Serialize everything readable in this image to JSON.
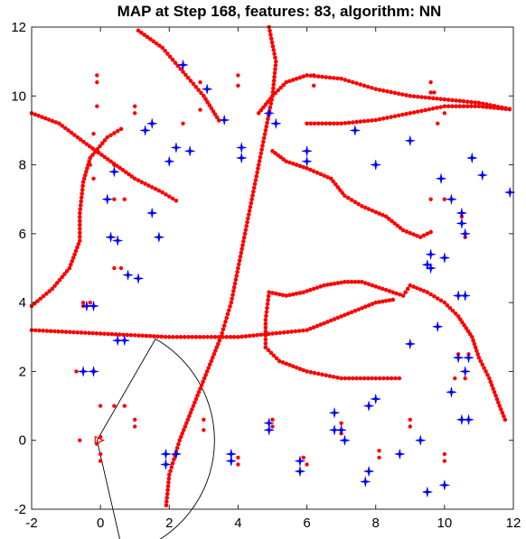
{
  "chart_data": {
    "type": "scatter",
    "title": "MAP at Step 168, features: 83, algorithm: NN",
    "xlabel": "",
    "ylabel": "",
    "xlim": [
      -2,
      12
    ],
    "ylim": [
      -2,
      12
    ],
    "xticks": [
      -2,
      0,
      2,
      4,
      6,
      8,
      10,
      12
    ],
    "yticks": [
      -2,
      0,
      2,
      4,
      6,
      8,
      10,
      12
    ],
    "grid": false,
    "colors": {
      "track": "#ff0000",
      "features": "#0000ff",
      "sensor": "#000000"
    },
    "tracks": [
      [
        [
          1.1,
          11.9
        ],
        [
          1.8,
          11.4
        ],
        [
          2.4,
          10.7
        ],
        [
          3.0,
          10.0
        ],
        [
          3.5,
          9.2
        ]
      ],
      [
        [
          -2.0,
          9.5
        ],
        [
          -1.2,
          9.2
        ],
        [
          -0.4,
          8.6
        ],
        [
          0.3,
          8.1
        ],
        [
          1.0,
          7.6
        ],
        [
          1.8,
          7.2
        ],
        [
          2.3,
          6.9
        ]
      ],
      [
        [
          4.9,
          12.0
        ],
        [
          5.1,
          11.0
        ],
        [
          5.0,
          10.0
        ],
        [
          4.8,
          9.0
        ],
        [
          4.6,
          8.0
        ],
        [
          4.4,
          7.0
        ],
        [
          4.2,
          6.0
        ],
        [
          4.0,
          5.0
        ],
        [
          3.8,
          4.0
        ],
        [
          3.5,
          3.0
        ],
        [
          3.1,
          2.0
        ],
        [
          2.7,
          1.0
        ],
        [
          2.3,
          0.0
        ],
        [
          2.0,
          -1.0
        ],
        [
          1.9,
          -2.0
        ]
      ],
      [
        [
          -2.0,
          3.9
        ],
        [
          -1.4,
          4.4
        ],
        [
          -0.9,
          5.0
        ],
        [
          -0.6,
          5.8
        ],
        [
          -0.6,
          6.6
        ],
        [
          -0.5,
          7.5
        ],
        [
          -0.3,
          8.2
        ],
        [
          0.2,
          8.8
        ],
        [
          0.7,
          9.1
        ]
      ],
      [
        [
          -2.0,
          3.2
        ],
        [
          0.0,
          3.1
        ],
        [
          2.0,
          3.0
        ],
        [
          4.0,
          3.0
        ],
        [
          5.0,
          3.1
        ],
        [
          6.0,
          3.2
        ],
        [
          7.0,
          3.6
        ],
        [
          8.0,
          4.0
        ],
        [
          8.6,
          4.1
        ]
      ],
      [
        [
          4.8,
          2.7
        ],
        [
          5.2,
          2.3
        ],
        [
          6.0,
          2.0
        ],
        [
          7.0,
          1.8
        ],
        [
          8.0,
          1.8
        ],
        [
          8.8,
          1.8
        ]
      ],
      [
        [
          4.8,
          2.7
        ],
        [
          4.8,
          3.5
        ],
        [
          4.9,
          4.3
        ],
        [
          5.4,
          4.2
        ],
        [
          5.9,
          4.3
        ],
        [
          6.5,
          4.5
        ],
        [
          7.1,
          4.6
        ],
        [
          7.6,
          4.6
        ],
        [
          8.2,
          4.4
        ],
        [
          8.8,
          4.2
        ],
        [
          9.0,
          4.5
        ],
        [
          9.5,
          4.3
        ],
        [
          10.0,
          4.0
        ],
        [
          10.4,
          3.6
        ],
        [
          10.8,
          3.0
        ],
        [
          11.0,
          2.4
        ],
        [
          11.3,
          1.8
        ],
        [
          11.6,
          1.0
        ],
        [
          11.8,
          0.5
        ]
      ],
      [
        [
          4.6,
          9.5
        ],
        [
          5.0,
          10.0
        ],
        [
          5.4,
          10.4
        ],
        [
          6.0,
          10.6
        ],
        [
          7.0,
          10.5
        ],
        [
          8.0,
          10.2
        ],
        [
          9.0,
          10.0
        ],
        [
          10.0,
          9.9
        ],
        [
          11.0,
          9.8
        ],
        [
          12.0,
          9.6
        ]
      ],
      [
        [
          6.0,
          9.2
        ],
        [
          7.0,
          9.2
        ],
        [
          8.0,
          9.3
        ],
        [
          9.0,
          9.5
        ],
        [
          10.0,
          9.7
        ],
        [
          11.0,
          9.7
        ],
        [
          12.0,
          9.6
        ]
      ],
      [
        [
          5.0,
          8.4
        ],
        [
          5.4,
          8.1
        ],
        [
          6.0,
          7.9
        ],
        [
          6.7,
          7.6
        ],
        [
          7.1,
          7.1
        ],
        [
          7.6,
          6.8
        ],
        [
          8.3,
          6.5
        ],
        [
          8.8,
          6.1
        ],
        [
          9.3,
          5.9
        ],
        [
          9.7,
          6.1
        ]
      ]
    ],
    "landmarks": [
      [
        2.4,
        10.9
      ],
      [
        3.1,
        10.2
      ],
      [
        1.5,
        9.2
      ],
      [
        1.3,
        9.0
      ],
      [
        3.6,
        9.3
      ],
      [
        2.2,
        8.5
      ],
      [
        2.6,
        8.4
      ],
      [
        2.0,
        8.1
      ],
      [
        4.1,
        8.5
      ],
      [
        4.1,
        8.2
      ],
      [
        4.9,
        9.5
      ],
      [
        5.1,
        9.2
      ],
      [
        6.0,
        8.4
      ],
      [
        6.0,
        8.1
      ],
      [
        7.4,
        9.0
      ],
      [
        8.0,
        8.0
      ],
      [
        9.0,
        8.7
      ],
      [
        9.9,
        7.6
      ],
      [
        10.2,
        7.0
      ],
      [
        10.8,
        8.2
      ],
      [
        11.1,
        7.7
      ],
      [
        11.9,
        7.2
      ],
      [
        10.5,
        6.6
      ],
      [
        10.5,
        6.3
      ],
      [
        10.6,
        6.0
      ],
      [
        0.4,
        7.8
      ],
      [
        0.2,
        7.0
      ],
      [
        1.5,
        6.6
      ],
      [
        1.7,
        5.9
      ],
      [
        0.3,
        5.9
      ],
      [
        0.5,
        5.8
      ],
      [
        0.8,
        4.8
      ],
      [
        1.1,
        4.7
      ],
      [
        -0.4,
        3.9
      ],
      [
        -0.2,
        3.9
      ],
      [
        0.5,
        2.9
      ],
      [
        0.7,
        2.9
      ],
      [
        -0.5,
        2.0
      ],
      [
        -0.2,
        2.0
      ],
      [
        9.6,
        5.4
      ],
      [
        9.5,
        5.1
      ],
      [
        9.6,
        5.0
      ],
      [
        10.0,
        5.3
      ],
      [
        10.4,
        4.2
      ],
      [
        10.6,
        4.2
      ],
      [
        9.8,
        3.3
      ],
      [
        9.0,
        2.8
      ],
      [
        10.4,
        2.4
      ],
      [
        10.7,
        2.4
      ],
      [
        10.6,
        2.0
      ],
      [
        10.2,
        1.4
      ],
      [
        10.5,
        0.6
      ],
      [
        10.7,
        0.6
      ],
      [
        8.0,
        1.2
      ],
      [
        7.8,
        1.0
      ],
      [
        6.8,
        0.8
      ],
      [
        6.8,
        0.3
      ],
      [
        7.0,
        0.3
      ],
      [
        7.1,
        0.0
      ],
      [
        4.9,
        0.5
      ],
      [
        4.9,
        0.3
      ],
      [
        3.8,
        -0.4
      ],
      [
        3.8,
        -0.6
      ],
      [
        1.9,
        -0.4
      ],
      [
        1.9,
        -0.7
      ],
      [
        2.2,
        -0.4
      ],
      [
        5.8,
        -0.6
      ],
      [
        5.8,
        -0.9
      ],
      [
        7.8,
        -0.9
      ],
      [
        7.7,
        -1.2
      ],
      [
        8.7,
        -0.4
      ],
      [
        9.3,
        0.0
      ],
      [
        9.5,
        -1.5
      ],
      [
        10.0,
        -1.3
      ]
    ],
    "landmark_marks": [
      [
        -0.1,
        10.6
      ],
      [
        -0.1,
        10.4
      ],
      [
        -0.1,
        9.7
      ],
      [
        -0.2,
        8.9
      ],
      [
        1.0,
        9.7
      ],
      [
        1.0,
        9.5
      ],
      [
        2.4,
        9.2
      ],
      [
        2.9,
        9.6
      ],
      [
        2.9,
        10.4
      ],
      [
        4.0,
        10.6
      ],
      [
        4.0,
        10.3
      ],
      [
        6.2,
        10.6
      ],
      [
        6.2,
        10.3
      ],
      [
        9.6,
        10.4
      ],
      [
        9.6,
        10.1
      ],
      [
        9.7,
        10.1
      ],
      [
        0.4,
        8.0
      ],
      [
        -0.3,
        8.0
      ],
      [
        -0.2,
        7.6
      ],
      [
        0.4,
        7.0
      ],
      [
        0.7,
        7.0
      ],
      [
        0.4,
        5.0
      ],
      [
        0.6,
        5.0
      ],
      [
        -0.5,
        4.0
      ],
      [
        -0.3,
        4.0
      ],
      [
        -0.5,
        3.9
      ],
      [
        -0.7,
        2.0
      ],
      [
        -0.2,
        2.0
      ],
      [
        0.4,
        1.0
      ],
      [
        0.7,
        1.0
      ],
      [
        1.0,
        0.6
      ],
      [
        1.0,
        0.4
      ],
      [
        0.0,
        1.0
      ],
      [
        0.0,
        0.1
      ],
      [
        0.0,
        -0.4
      ],
      [
        0.0,
        -0.6
      ],
      [
        -0.6,
        0.0
      ],
      [
        -0.1,
        -0.1
      ],
      [
        3.0,
        0.6
      ],
      [
        3.0,
        0.3
      ],
      [
        4.0,
        -0.5
      ],
      [
        4.0,
        -0.7
      ],
      [
        5.0,
        0.6
      ],
      [
        5.0,
        0.4
      ],
      [
        5.9,
        -0.5
      ],
      [
        6.0,
        -0.7
      ],
      [
        7.0,
        0.5
      ],
      [
        7.0,
        0.2
      ],
      [
        8.1,
        -0.3
      ],
      [
        8.1,
        -0.5
      ],
      [
        9.0,
        0.6
      ],
      [
        9.0,
        0.4
      ],
      [
        10.0,
        -0.4
      ],
      [
        10.0,
        -0.6
      ],
      [
        10.3,
        1.8
      ],
      [
        10.6,
        1.8
      ],
      [
        10.4,
        2.5
      ],
      [
        10.7,
        2.5
      ],
      [
        9.6,
        7.0
      ],
      [
        10.0,
        7.0
      ],
      [
        10.6,
        5.9
      ],
      [
        10.5,
        6.5
      ],
      [
        10.0,
        9.5
      ],
      [
        9.8,
        9.2
      ]
    ],
    "sensor": {
      "origin": [
        -0.1,
        0.0
      ],
      "max_range": 3.4,
      "fov_deg": [
        60,
        77
      ]
    }
  }
}
